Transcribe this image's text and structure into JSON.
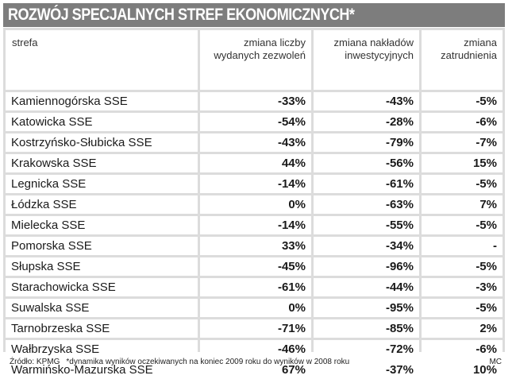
{
  "title": "ROZWÓJ SPECJALNYCH STREF EKONOMICZNYCH*",
  "headers": {
    "col1": "strefa",
    "col2_line1": "zmiana liczby",
    "col2_line2": "wydanych zezwoleń",
    "col3_line1": "zmiana nakładów",
    "col3_line2": "inwestycyjnych",
    "col4_line1": "zmiana",
    "col4_line2": "zatrudnienia"
  },
  "rows": [
    {
      "name": "Kamiennogórska SSE",
      "permits": "-33%",
      "investment": "-43%",
      "employment": "-5%"
    },
    {
      "name": "Katowicka SSE",
      "permits": "-54%",
      "investment": "-28%",
      "employment": "-6%"
    },
    {
      "name": "Kostrzyńsko-Słubicka SSE",
      "permits": "-43%",
      "investment": "-79%",
      "employment": "-7%"
    },
    {
      "name": "Krakowska SSE",
      "permits": "44%",
      "investment": "-56%",
      "employment": "15%"
    },
    {
      "name": "Legnicka SSE",
      "permits": "-14%",
      "investment": "-61%",
      "employment": "-5%"
    },
    {
      "name": "Łódzka SSE",
      "permits": "0%",
      "investment": "-63%",
      "employment": "7%"
    },
    {
      "name": "Mielecka SSE",
      "permits": "-14%",
      "investment": "-55%",
      "employment": "-5%"
    },
    {
      "name": "Pomorska SSE",
      "permits": "33%",
      "investment": "-34%",
      "employment": "-"
    },
    {
      "name": "Słupska SSE",
      "permits": "-45%",
      "investment": "-96%",
      "employment": "-5%"
    },
    {
      "name": "Starachowicka SSE",
      "permits": "-61%",
      "investment": "-44%",
      "employment": "-3%"
    },
    {
      "name": "Suwalska SSE",
      "permits": "0%",
      "investment": "-95%",
      "employment": "-5%"
    },
    {
      "name": "Tarnobrzeska SSE",
      "permits": "-71%",
      "investment": "-85%",
      "employment": "2%"
    },
    {
      "name": "Wałbrzyska SSE",
      "permits": "-46%",
      "investment": "-72%",
      "employment": "-6%"
    },
    {
      "name": "Warmińsko-Mazurska SSE",
      "permits": "67%",
      "investment": "-37%",
      "employment": "10%"
    }
  ],
  "footer": {
    "source": "Źródło: KPMG",
    "note": "*dynamika wyników oczekiwanych na koniec 2009 roku do wyników w 2008 roku",
    "author": "MC"
  },
  "colors": {
    "title_bg": "#7d7d7d",
    "grid_bg": "#dcdcdc",
    "cell_bg": "#ffffff"
  }
}
